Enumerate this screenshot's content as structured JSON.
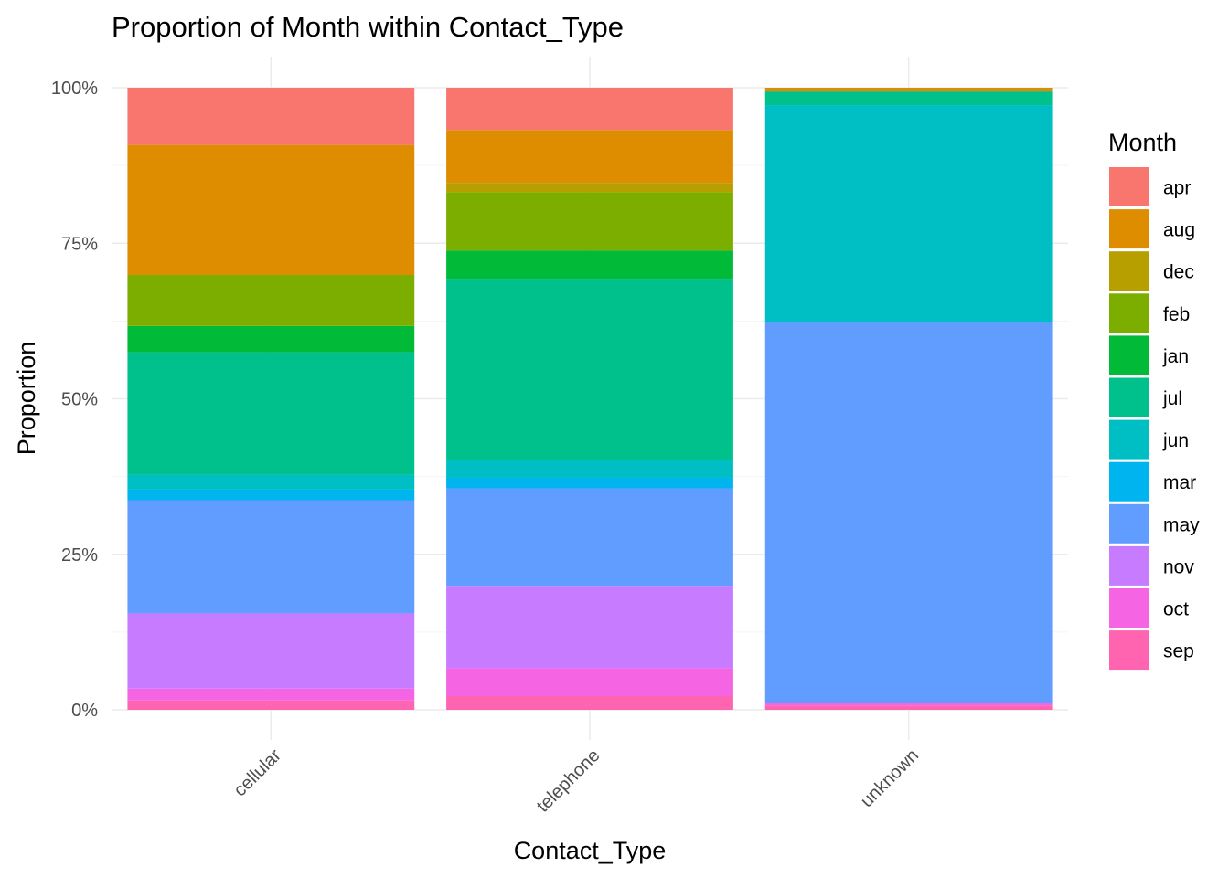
{
  "chart_data": {
    "type": "bar",
    "stacked": "proportion",
    "title": "Proportion of Month within Contact_Type",
    "xlabel": "Contact_Type",
    "ylabel": "Proportion",
    "ylim": [
      0,
      1
    ],
    "y_ticks": [
      {
        "value": 0,
        "label": "0%"
      },
      {
        "value": 0.25,
        "label": "25%"
      },
      {
        "value": 0.5,
        "label": "50%"
      },
      {
        "value": 0.75,
        "label": "75%"
      },
      {
        "value": 1,
        "label": "100%"
      }
    ],
    "categories": [
      "cellular",
      "telephone",
      "unknown"
    ],
    "legend": {
      "title": "Month",
      "placement": "right"
    },
    "series": [
      {
        "name": "apr",
        "color": "#F8766D",
        "values": [
          0.092,
          0.068,
          0.0
        ]
      },
      {
        "name": "aug",
        "color": "#DE8C00",
        "values": [
          0.209,
          0.085,
          0.006
        ]
      },
      {
        "name": "dec",
        "color": "#B79F00",
        "values": [
          0.0,
          0.015,
          0.0
        ]
      },
      {
        "name": "feb",
        "color": "#7CAE00",
        "values": [
          0.082,
          0.094,
          0.0
        ]
      },
      {
        "name": "jan",
        "color": "#00BA38",
        "values": [
          0.042,
          0.045,
          0.0
        ]
      },
      {
        "name": "jul",
        "color": "#00C08B",
        "values": [
          0.197,
          0.292,
          0.022
        ]
      },
      {
        "name": "jun",
        "color": "#00BFC4",
        "values": [
          0.024,
          0.028,
          0.349
        ]
      },
      {
        "name": "mar",
        "color": "#00B4F0",
        "values": [
          0.017,
          0.017,
          0.0
        ]
      },
      {
        "name": "may",
        "color": "#619CFF",
        "values": [
          0.182,
          0.158,
          0.612
        ]
      },
      {
        "name": "nov",
        "color": "#C77CFF",
        "values": [
          0.121,
          0.131,
          0.0
        ]
      },
      {
        "name": "oct",
        "color": "#F564E3",
        "values": [
          0.019,
          0.045,
          0.004
        ]
      },
      {
        "name": "sep",
        "color": "#FF64B0",
        "values": [
          0.015,
          0.022,
          0.007
        ]
      }
    ]
  }
}
